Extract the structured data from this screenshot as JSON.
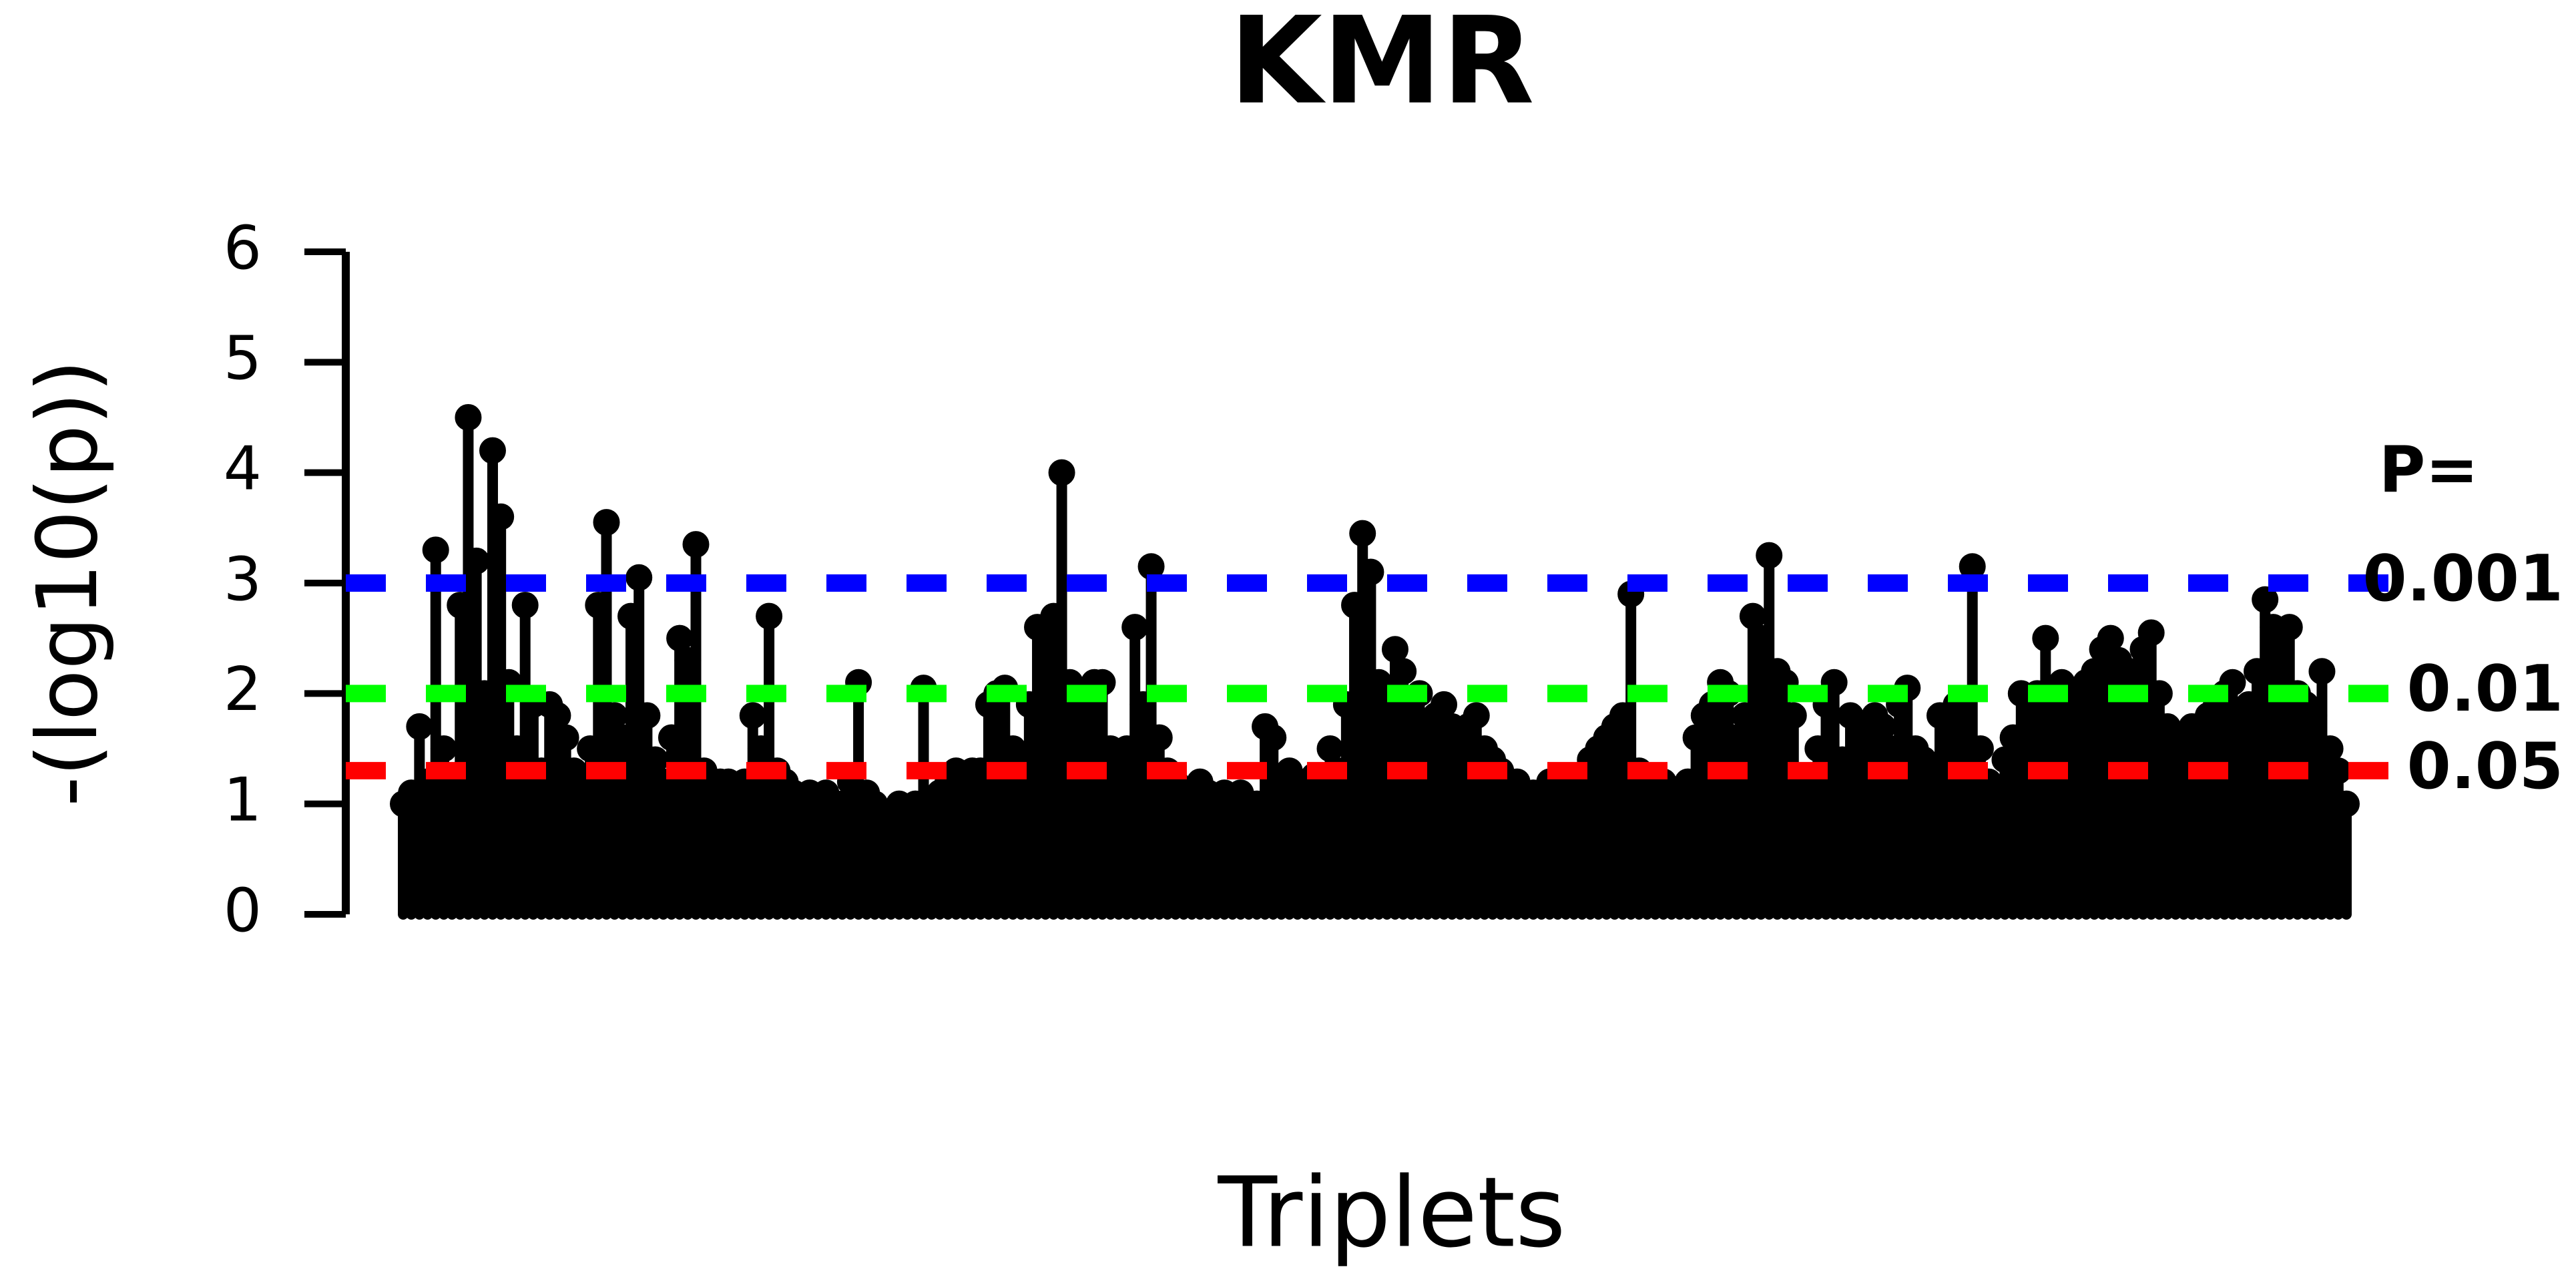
{
  "chart_data": {
    "type": "lollipop",
    "title": "KMR",
    "xlabel": "Triplets",
    "ylabel": "-(log10(p))",
    "ylim": [
      0,
      6
    ],
    "yticks": [
      0,
      1,
      2,
      3,
      4,
      5,
      6
    ],
    "color": "#000000",
    "values": [
      1.0,
      1.1,
      1.7,
      1.2,
      3.3,
      1.5,
      1.2,
      2.8,
      4.5,
      3.2,
      2.0,
      4.2,
      3.6,
      2.1,
      1.5,
      2.8,
      1.9,
      1.3,
      1.9,
      1.8,
      1.6,
      1.3,
      1.2,
      1.5,
      2.8,
      3.55,
      1.8,
      1.6,
      2.7,
      3.05,
      1.8,
      1.4,
      1.2,
      1.6,
      2.5,
      2.3,
      3.35,
      1.3,
      1.2,
      1.2,
      1.2,
      1.1,
      1.2,
      1.8,
      1.5,
      2.7,
      1.3,
      1.2,
      1.1,
      1.0,
      1.1,
      1.0,
      1.1,
      1.0,
      1.0,
      1.2,
      2.1,
      1.1,
      1.0,
      0.9,
      0.9,
      1.0,
      0.8,
      1.0,
      2.05,
      1.0,
      1.1,
      1.2,
      1.3,
      1.2,
      1.3,
      1.3,
      1.9,
      2.0,
      2.05,
      1.5,
      1.4,
      1.9,
      2.6,
      2.5,
      2.7,
      4.0,
      2.1,
      2.0,
      1.9,
      2.1,
      2.1,
      1.5,
      1.4,
      1.5,
      2.6,
      1.9,
      3.15,
      1.6,
      1.3,
      1.2,
      1.1,
      1.0,
      1.2,
      1.1,
      1.0,
      1.1,
      1.0,
      1.1,
      1.0,
      1.0,
      1.7,
      1.6,
      1.2,
      1.3,
      1.2,
      1.2,
      1.25,
      1.2,
      1.5,
      1.3,
      1.9,
      2.8,
      3.45,
      3.1,
      2.1,
      2.0,
      2.4,
      2.2,
      1.9,
      2.0,
      1.7,
      1.8,
      1.9,
      1.7,
      1.6,
      1.7,
      1.8,
      1.5,
      1.4,
      1.3,
      1.2,
      1.2,
      1.1,
      1.1,
      1.0,
      1.2,
      1.0,
      1.1,
      1.2,
      1.1,
      1.4,
      1.5,
      1.6,
      1.7,
      1.8,
      2.9,
      1.3,
      1.2,
      1.1,
      1.2,
      1.1,
      1.1,
      1.2,
      1.6,
      1.8,
      1.9,
      2.1,
      2.0,
      1.6,
      1.8,
      2.7,
      2.5,
      3.25,
      2.2,
      2.1,
      1.8,
      1.2,
      1.1,
      1.5,
      1.9,
      2.1,
      1.4,
      1.8,
      1.7,
      1.6,
      1.8,
      1.7,
      1.5,
      1.9,
      2.05,
      1.5,
      1.4,
      1.3,
      1.8,
      1.7,
      1.9,
      1.8,
      3.15,
      1.5,
      1.2,
      1.1,
      1.4,
      1.6,
      2.0,
      1.9,
      2.0,
      2.5,
      2.0,
      2.1,
      1.9,
      2.0,
      2.1,
      2.2,
      2.4,
      2.5,
      2.3,
      2.1,
      2.2,
      2.4,
      2.55,
      2.0,
      1.7,
      1.5,
      1.6,
      1.7,
      1.6,
      1.8,
      1.9,
      2.0,
      2.1,
      1.8,
      1.9,
      2.2,
      2.85,
      2.6,
      2.4,
      2.6,
      2.0,
      1.9,
      1.8,
      2.2,
      1.5,
      1.3,
      1.0
    ],
    "threshold_title": "P=",
    "thresholds": [
      {
        "value": 3,
        "label": "0.001",
        "color": "#0000ff"
      },
      {
        "value": 2,
        "label": "0.01",
        "color": "#00ff00"
      },
      {
        "value": 1.301,
        "label": "0.05",
        "color": "#ff0000"
      }
    ]
  }
}
